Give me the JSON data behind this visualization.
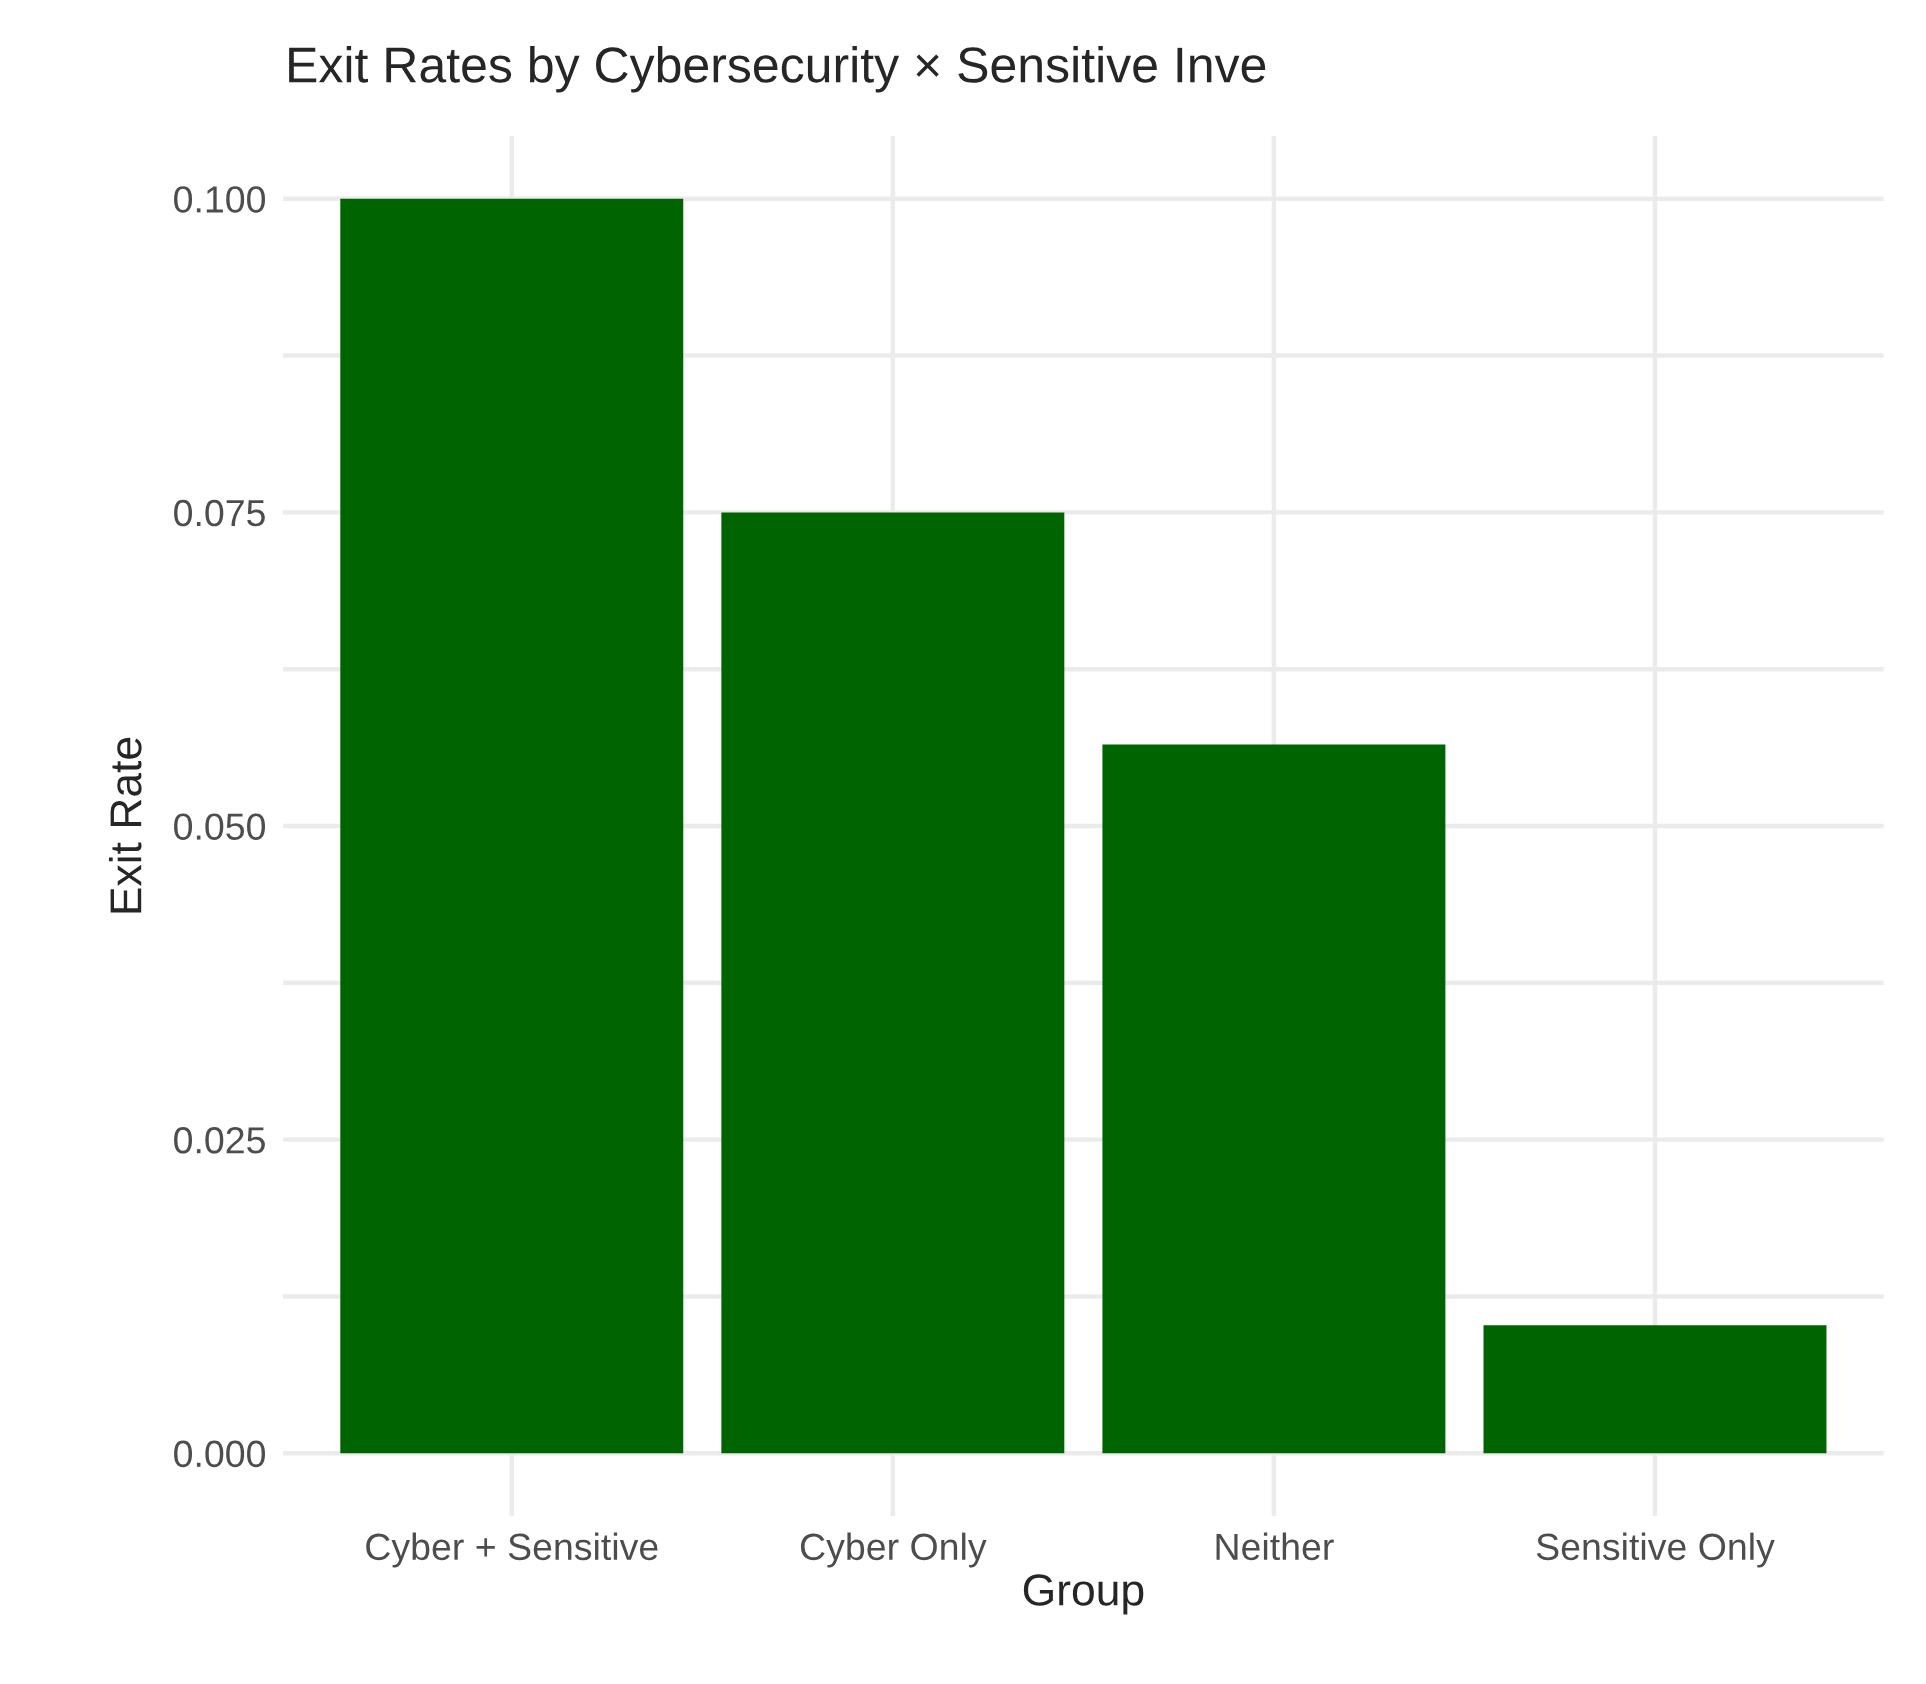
{
  "chart_data": {
    "type": "bar",
    "title": "Exit Rates by Cybersecurity × Sensitive Inve",
    "xlabel": "Group",
    "ylabel": "Exit Rate",
    "categories": [
      "Cyber + Sensitive",
      "Cyber Only",
      "Neither",
      "Sensitive Only"
    ],
    "values": [
      0.1,
      0.075,
      0.0565,
      0.0102
    ],
    "color": "#006400",
    "ylim": [
      -0.005,
      0.105
    ],
    "yticks": [
      {
        "value": 0,
        "label": "0.000"
      },
      {
        "value": 0.0125,
        "label": null
      },
      {
        "value": 0.025,
        "label": "0.025"
      },
      {
        "value": 0.0375,
        "label": null
      },
      {
        "value": 0.05,
        "label": "0.050"
      },
      {
        "value": 0.0625,
        "label": null
      },
      {
        "value": 0.075,
        "label": "0.075"
      },
      {
        "value": 0.0875,
        "label": null
      },
      {
        "value": 0.1,
        "label": "0.100"
      }
    ],
    "grid": true
  }
}
